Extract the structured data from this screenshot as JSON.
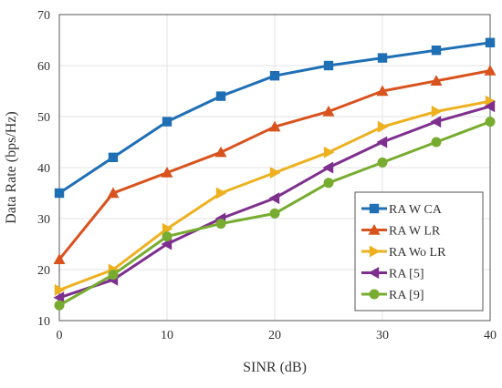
{
  "chart_data": {
    "type": "line",
    "title": "",
    "xlabel": "SINR (dB)",
    "ylabel": "Data Rate (bps/Hz)",
    "xlim": [
      0,
      40
    ],
    "ylim": [
      10,
      70
    ],
    "xticks": [
      0,
      10,
      20,
      30,
      40
    ],
    "yticks": [
      10,
      20,
      30,
      40,
      50,
      60,
      70
    ],
    "grid": true,
    "legend_position": "bottom-right",
    "x": [
      0,
      5,
      10,
      15,
      20,
      25,
      30,
      35,
      40
    ],
    "series": [
      {
        "name": "RA W CA",
        "color": "#1f6fb5",
        "marker": "square",
        "values": [
          35,
          42,
          49,
          54,
          58,
          60,
          61.5,
          63,
          64.5
        ]
      },
      {
        "name": "RA W LR",
        "color": "#d9531e",
        "marker": "triangle-up",
        "values": [
          22,
          35,
          39,
          43,
          48,
          51,
          55,
          57,
          59
        ]
      },
      {
        "name": "RA Wo LR",
        "color": "#edb120",
        "marker": "triangle-right",
        "values": [
          16,
          20,
          28,
          35,
          39,
          43,
          48,
          51,
          53
        ]
      },
      {
        "name": "RA [5]",
        "color": "#7e2f8e",
        "marker": "triangle-left",
        "values": [
          14.5,
          18,
          25,
          30,
          34,
          40,
          45,
          49,
          52
        ]
      },
      {
        "name": "RA [9]",
        "color": "#77ac30",
        "marker": "circle",
        "values": [
          13,
          19,
          26.5,
          29,
          31,
          37,
          41,
          45,
          49
        ]
      }
    ]
  }
}
